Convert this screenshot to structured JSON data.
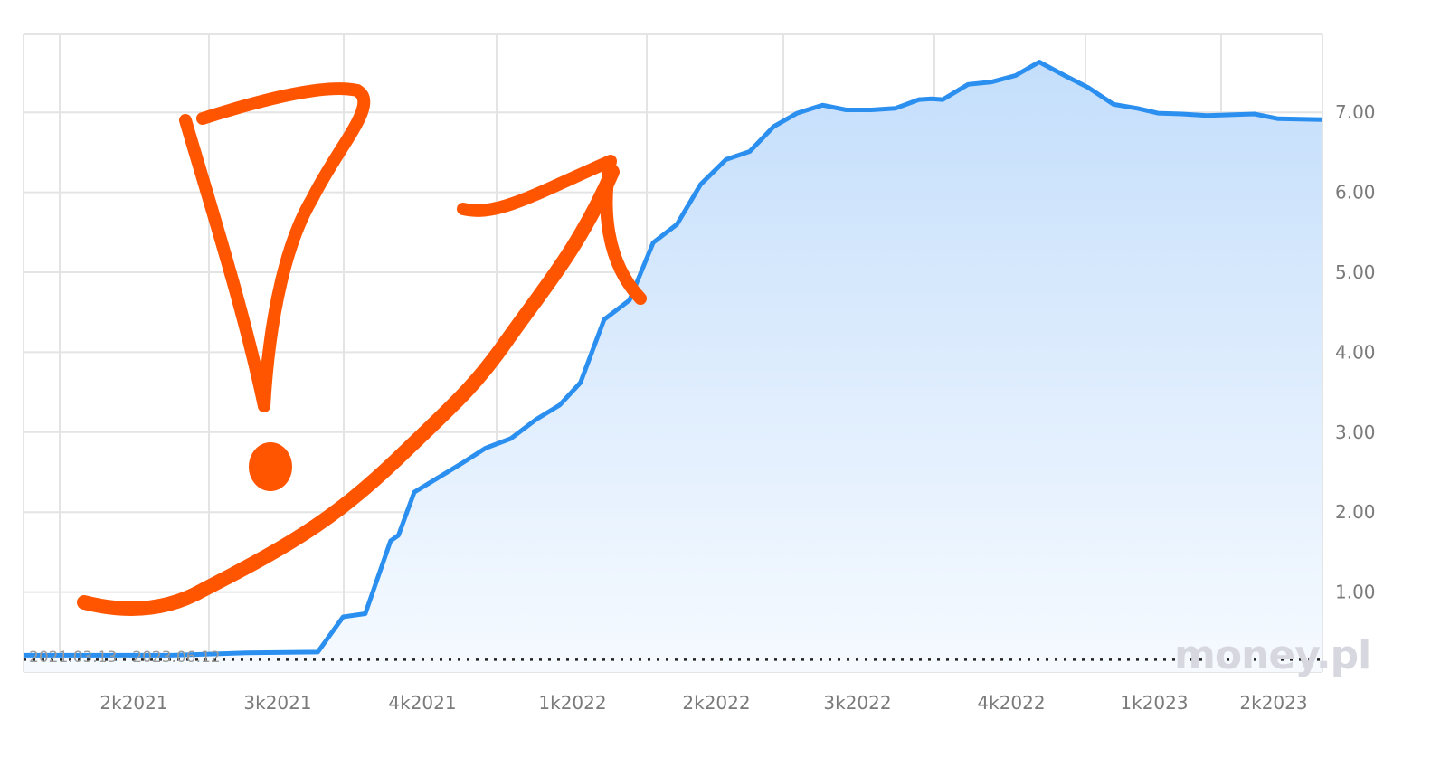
{
  "chart_data": {
    "type": "area",
    "title": "",
    "xlabel": "",
    "ylabel": "",
    "x_tick_labels": [
      "2k2021",
      "3k2021",
      "4k2021",
      "1k2022",
      "2k2022",
      "3k2022",
      "4k2022",
      "1k2023",
      "2k2023"
    ],
    "y_tick_labels": [
      "1.00",
      "2.00",
      "3.00",
      "4.00",
      "5.00",
      "6.00",
      "7.00"
    ],
    "y_ticks": [
      1,
      2,
      3,
      4,
      5,
      6,
      7
    ],
    "ylim": [
      0,
      8
    ],
    "x_range": [
      "2021-03-13",
      "2023-06-12"
    ],
    "range_label": "2021.03.13 - 2023.06.12",
    "reference_line": 0.21,
    "grid": true,
    "series": [
      {
        "x": [
          "2021-03-13",
          "2021-04-15",
          "2021-06-15",
          "2021-08-01",
          "2021-09-15",
          "2021-10-01",
          "2021-10-15",
          "2021-10-31",
          "2021-11-05",
          "2021-11-15",
          "2021-11-30",
          "2021-12-15",
          "2021-12-30",
          "2022-01-15",
          "2022-01-31",
          "2022-02-15",
          "2022-02-28",
          "2022-03-15",
          "2022-03-31",
          "2022-04-15",
          "2022-04-30",
          "2022-05-15",
          "2022-05-31",
          "2022-06-15",
          "2022-06-30",
          "2022-07-15",
          "2022-07-31",
          "2022-08-15",
          "2022-08-31",
          "2022-09-15",
          "2022-09-30",
          "2022-10-08",
          "2022-10-15",
          "2022-10-31",
          "2022-11-15",
          "2022-11-30",
          "2022-12-15",
          "2022-12-31",
          "2023-01-15",
          "2023-01-31",
          "2023-02-15",
          "2023-02-28",
          "2023-03-15",
          "2023-03-31",
          "2023-04-15",
          "2023-04-30",
          "2023-05-15",
          "2023-06-12"
        ],
        "y": [
          0.21,
          0.21,
          0.21,
          0.24,
          0.25,
          0.69,
          0.73,
          1.64,
          1.71,
          2.25,
          2.43,
          2.61,
          2.8,
          2.92,
          3.16,
          3.34,
          3.62,
          4.41,
          4.65,
          5.37,
          5.6,
          6.1,
          6.41,
          6.51,
          6.82,
          6.99,
          7.09,
          7.03,
          7.03,
          7.05,
          7.16,
          7.17,
          7.16,
          7.35,
          7.38,
          7.46,
          7.63,
          7.46,
          7.31,
          7.1,
          7.05,
          6.99,
          6.98,
          6.96,
          6.97,
          6.98,
          6.92,
          6.91
        ]
      }
    ],
    "colors": {
      "line": "#2b8ff0",
      "fill_top": "#c4defb",
      "fill_bottom": "#f6faff",
      "grid": "#e4e4e4",
      "annotation": "#ff5500",
      "watermark": "#d7d7df"
    },
    "watermark": "money.pl",
    "annotations": [
      "hand-drawn exclamation mark",
      "hand-drawn upward arrow"
    ]
  }
}
